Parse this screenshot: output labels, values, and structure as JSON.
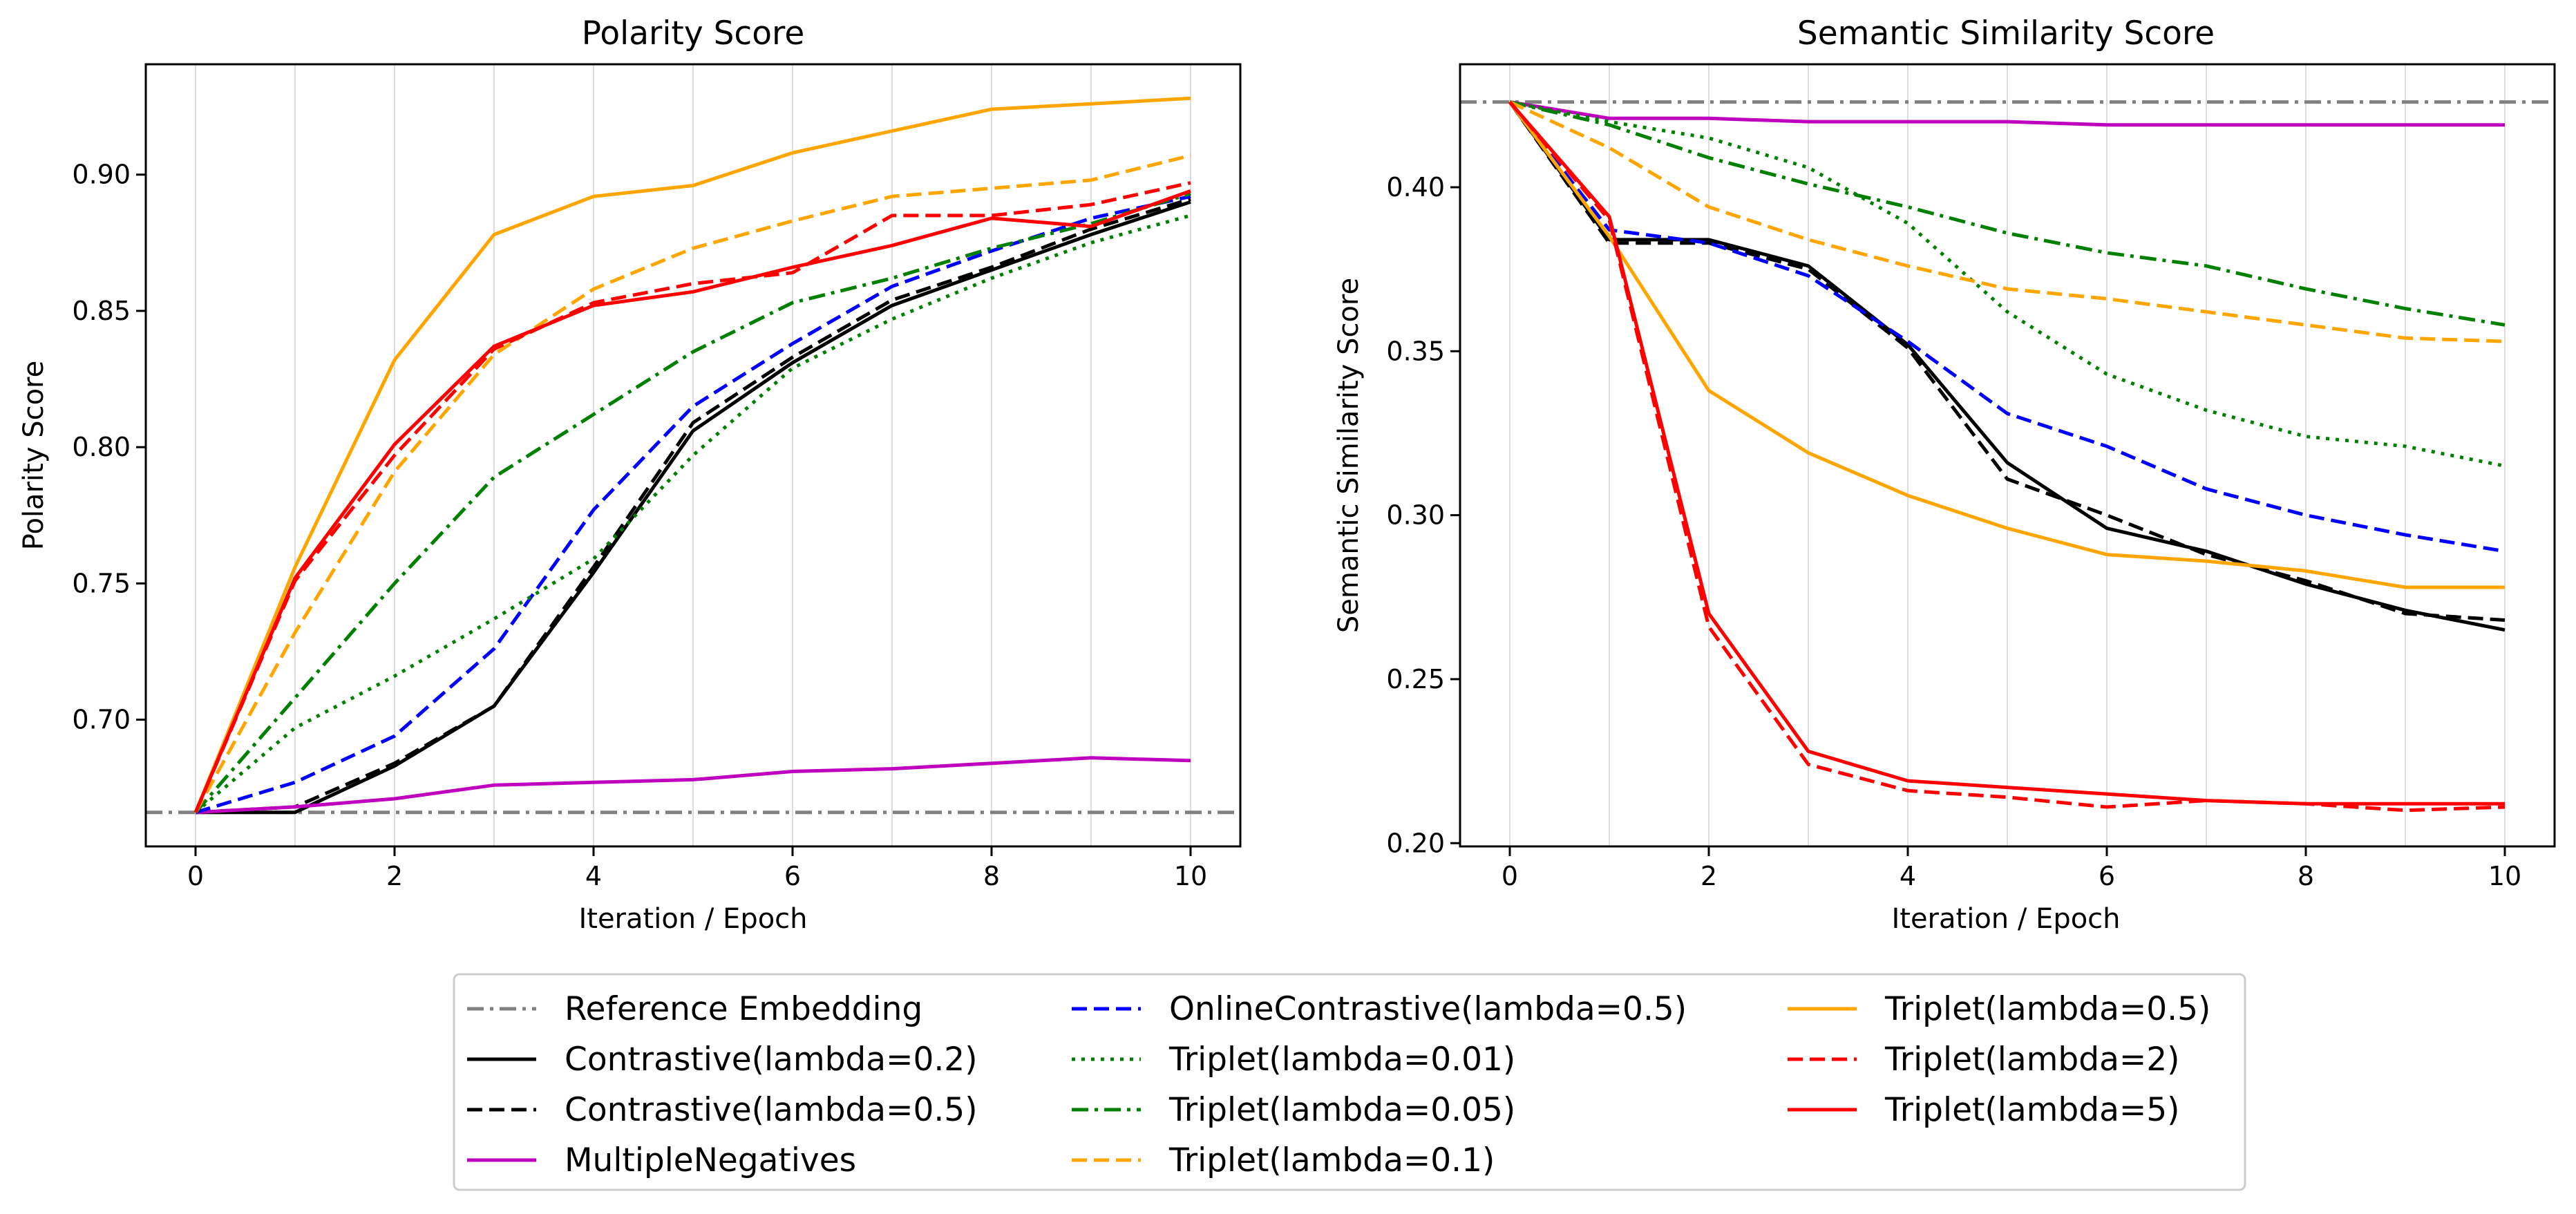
{
  "chart_data": [
    {
      "id": "polarity",
      "type": "line",
      "title": "Polarity Score",
      "xlabel": "Iteration / Epoch",
      "ylabel": "Polarity Score",
      "xlim": [
        -0.5,
        10.5
      ],
      "ylim": [
        0.6535,
        0.9405
      ],
      "xticks": [
        0,
        2,
        4,
        6,
        8,
        10
      ],
      "yticks": [
        0.7,
        0.75,
        0.8,
        0.85,
        0.9
      ],
      "ytick_labels": [
        "0.70",
        "0.75",
        "0.80",
        "0.85",
        "0.90"
      ],
      "vgrid": true,
      "x": [
        0,
        1,
        2,
        3,
        4,
        5,
        6,
        7,
        8,
        9,
        10
      ],
      "reference": 0.666,
      "series": [
        {
          "key": "contrastive_02",
          "values": [
            0.666,
            0.666,
            0.683,
            0.705,
            0.754,
            0.806,
            0.831,
            0.852,
            0.865,
            0.878,
            0.89
          ]
        },
        {
          "key": "contrastive_05",
          "values": [
            0.666,
            0.668,
            0.684,
            0.705,
            0.756,
            0.809,
            0.833,
            0.854,
            0.866,
            0.88,
            0.891
          ]
        },
        {
          "key": "multiplenegatives",
          "values": [
            0.666,
            0.668,
            0.671,
            0.676,
            0.677,
            0.678,
            0.681,
            0.682,
            0.684,
            0.686,
            0.685
          ]
        },
        {
          "key": "onlinecontrastive_05",
          "values": [
            0.666,
            0.677,
            0.694,
            0.726,
            0.777,
            0.815,
            0.838,
            0.859,
            0.872,
            0.884,
            0.892
          ]
        },
        {
          "key": "triplet_001",
          "values": [
            0.666,
            0.697,
            0.716,
            0.737,
            0.759,
            0.797,
            0.829,
            0.847,
            0.862,
            0.875,
            0.885
          ]
        },
        {
          "key": "triplet_005",
          "values": [
            0.666,
            0.708,
            0.75,
            0.789,
            0.812,
            0.835,
            0.853,
            0.862,
            0.873,
            0.882,
            0.893
          ]
        },
        {
          "key": "triplet_01",
          "values": [
            0.666,
            0.732,
            0.791,
            0.834,
            0.858,
            0.873,
            0.883,
            0.892,
            0.895,
            0.898,
            0.907
          ]
        },
        {
          "key": "triplet_05",
          "values": [
            0.666,
            0.756,
            0.832,
            0.878,
            0.892,
            0.896,
            0.908,
            0.916,
            0.924,
            0.926,
            0.928
          ]
        },
        {
          "key": "triplet_2",
          "values": [
            0.666,
            0.751,
            0.797,
            0.836,
            0.853,
            0.86,
            0.864,
            0.885,
            0.885,
            0.889,
            0.897
          ]
        },
        {
          "key": "triplet_5",
          "values": [
            0.666,
            0.752,
            0.801,
            0.837,
            0.852,
            0.857,
            0.866,
            0.874,
            0.884,
            0.881,
            0.894
          ]
        }
      ]
    },
    {
      "id": "semantic",
      "type": "line",
      "title": "Semantic Similarity Score",
      "xlabel": "Iteration / Epoch",
      "ylabel": "Semantic Similarity Score",
      "xlim": [
        -0.5,
        10.5
      ],
      "ylim": [
        0.199,
        0.4375
      ],
      "xticks": [
        0,
        2,
        4,
        6,
        8,
        10
      ],
      "yticks": [
        0.2,
        0.25,
        0.3,
        0.35,
        0.4
      ],
      "ytick_labels": [
        "0.20",
        "0.25",
        "0.30",
        "0.35",
        "0.40"
      ],
      "vgrid": true,
      "x": [
        0,
        1,
        2,
        3,
        4,
        5,
        6,
        7,
        8,
        9,
        10
      ],
      "reference": 0.426,
      "series": [
        {
          "key": "contrastive_02",
          "values": [
            0.426,
            0.384,
            0.384,
            0.376,
            0.352,
            0.316,
            0.296,
            0.289,
            0.279,
            0.271,
            0.265
          ]
        },
        {
          "key": "contrastive_05",
          "values": [
            0.426,
            0.383,
            0.383,
            0.375,
            0.351,
            0.311,
            0.3,
            0.288,
            0.28,
            0.27,
            0.268
          ]
        },
        {
          "key": "multiplenegatives",
          "values": [
            0.426,
            0.421,
            0.421,
            0.42,
            0.42,
            0.42,
            0.419,
            0.419,
            0.419,
            0.419,
            0.419
          ]
        },
        {
          "key": "onlinecontrastive_05",
          "values": [
            0.426,
            0.387,
            0.383,
            0.373,
            0.353,
            0.331,
            0.321,
            0.308,
            0.3,
            0.294,
            0.289
          ]
        },
        {
          "key": "triplet_001",
          "values": [
            0.426,
            0.42,
            0.415,
            0.406,
            0.389,
            0.362,
            0.343,
            0.332,
            0.324,
            0.321,
            0.315
          ]
        },
        {
          "key": "triplet_005",
          "values": [
            0.426,
            0.419,
            0.409,
            0.401,
            0.394,
            0.386,
            0.38,
            0.376,
            0.369,
            0.363,
            0.358
          ]
        },
        {
          "key": "triplet_01",
          "values": [
            0.426,
            0.412,
            0.394,
            0.384,
            0.376,
            0.369,
            0.366,
            0.362,
            0.358,
            0.354,
            0.353
          ]
        },
        {
          "key": "triplet_05",
          "values": [
            0.426,
            0.385,
            0.338,
            0.319,
            0.306,
            0.296,
            0.288,
            0.286,
            0.283,
            0.278,
            0.278
          ]
        },
        {
          "key": "triplet_2",
          "values": [
            0.426,
            0.39,
            0.266,
            0.224,
            0.216,
            0.214,
            0.211,
            0.213,
            0.212,
            0.21,
            0.211
          ]
        },
        {
          "key": "triplet_5",
          "values": [
            0.426,
            0.391,
            0.27,
            0.228,
            0.219,
            0.217,
            0.215,
            0.213,
            0.212,
            0.212,
            0.212
          ]
        }
      ]
    }
  ],
  "legend": {
    "placement": "bottom-center",
    "columns": 3,
    "entries": [
      {
        "key": "reference",
        "label": "Reference Embedding",
        "color": "#808080",
        "style": "dashdot"
      },
      {
        "key": "contrastive_02",
        "label": "Contrastive(lambda=0.2)",
        "color": "#000000",
        "style": "solid"
      },
      {
        "key": "contrastive_05",
        "label": "Contrastive(lambda=0.5)",
        "color": "#000000",
        "style": "dashed"
      },
      {
        "key": "multiplenegatives",
        "label": "MultipleNegatives",
        "color": "#bf00bf",
        "style": "solid"
      },
      {
        "key": "onlinecontrastive_05",
        "label": "OnlineContrastive(lambda=0.5)",
        "color": "#0000ff",
        "style": "dashed"
      },
      {
        "key": "triplet_001",
        "label": "Triplet(lambda=0.01)",
        "color": "#008000",
        "style": "dotted"
      },
      {
        "key": "triplet_005",
        "label": "Triplet(lambda=0.05)",
        "color": "#008000",
        "style": "dashdot"
      },
      {
        "key": "triplet_01",
        "label": "Triplet(lambda=0.1)",
        "color": "#ffa500",
        "style": "dashed"
      },
      {
        "key": "triplet_05",
        "label": "Triplet(lambda=0.5)",
        "color": "#ffa500",
        "style": "solid"
      },
      {
        "key": "triplet_2",
        "label": "Triplet(lambda=2)",
        "color": "#ff0000",
        "style": "dashed"
      },
      {
        "key": "triplet_5",
        "label": "Triplet(lambda=5)",
        "color": "#ff0000",
        "style": "solid"
      }
    ]
  }
}
